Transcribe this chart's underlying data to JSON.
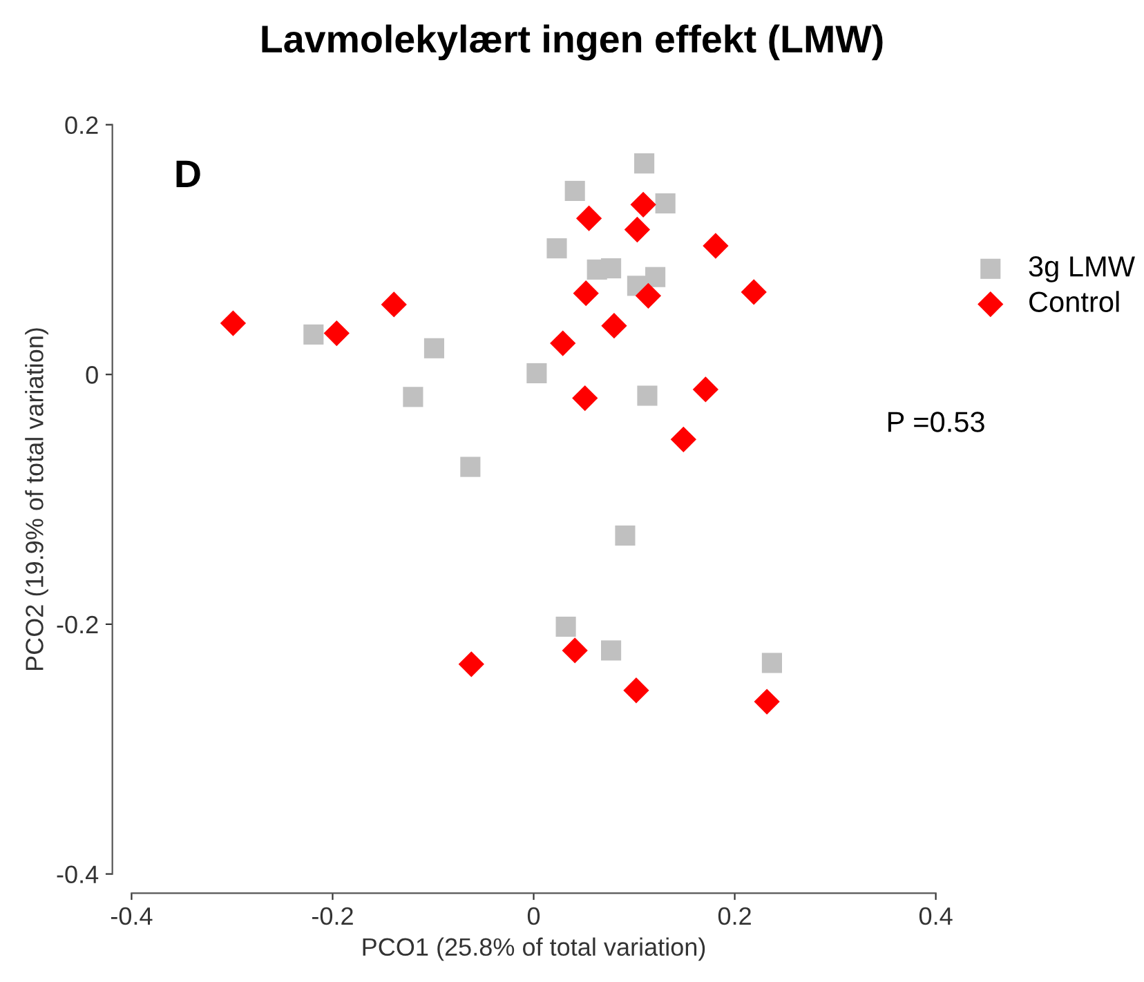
{
  "chart_data": {
    "type": "scatter",
    "title": "Lavmolekylært ingen effekt (LMW)",
    "xlabel": "PCO1 (25.8% of total variation)",
    "ylabel": "PCO2 (19.9% of total variation)",
    "xlim": [
      -0.4,
      0.4
    ],
    "ylim": [
      -0.4,
      0.2
    ],
    "xticks": [
      -0.4,
      -0.2,
      0,
      0.2,
      0.4
    ],
    "yticks": [
      -0.4,
      -0.2,
      0,
      0.2
    ],
    "grid": false,
    "legend": "right",
    "annotations": [
      "D",
      "P =0.53"
    ],
    "series": [
      {
        "name": "3g LMW",
        "color": "#c0c0c0",
        "marker": "square",
        "x": [
          0.11,
          0.041,
          0.131,
          0.023,
          0.063,
          0.077,
          0.121,
          0.103,
          -0.219,
          -0.099,
          0.003,
          -0.12,
          0.113,
          -0.063,
          0.091,
          0.032,
          0.077,
          0.237
        ],
        "values": [
          0.169,
          0.147,
          0.137,
          0.101,
          0.084,
          0.085,
          0.078,
          0.071,
          0.032,
          0.021,
          0.001,
          -0.018,
          -0.017,
          -0.074,
          -0.129,
          -0.202,
          -0.221,
          -0.231
        ]
      },
      {
        "name": "Control",
        "color": "#ff0000",
        "marker": "diamond",
        "x": [
          -0.299,
          -0.196,
          -0.139,
          0.055,
          0.109,
          0.103,
          0.181,
          0.219,
          0.052,
          0.114,
          0.08,
          0.029,
          0.051,
          0.171,
          0.149,
          -0.062,
          0.041,
          0.102,
          0.232
        ],
        "values": [
          0.041,
          0.033,
          0.056,
          0.125,
          0.136,
          0.116,
          0.103,
          0.066,
          0.065,
          0.063,
          0.039,
          0.025,
          -0.019,
          -0.012,
          -0.052,
          -0.232,
          -0.221,
          -0.253,
          -0.262
        ]
      }
    ]
  }
}
